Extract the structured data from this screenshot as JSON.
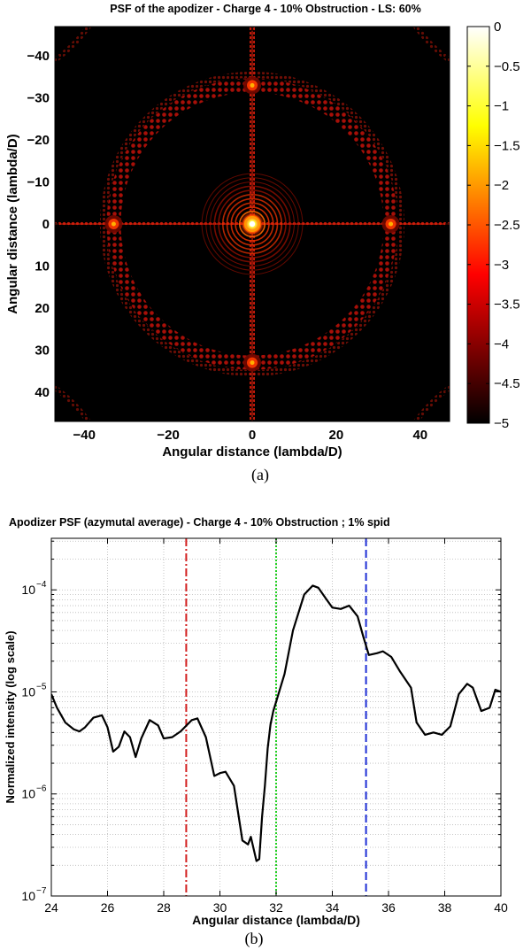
{
  "chart_data": [
    {
      "type": "heatmap",
      "panel_label": "(a)",
      "title": "PSF of the apodizer - Charge 4 - 10% Obstruction - LS: 60%",
      "xlabel": "Angular distance (lambda/D)",
      "ylabel": "Angular distance (lambda/D)",
      "xlim": [
        -47,
        47
      ],
      "ylim": [
        -47,
        47
      ],
      "x_ticks": [
        -40,
        -20,
        0,
        20,
        40
      ],
      "y_ticks": [
        -40,
        -30,
        -20,
        -10,
        0,
        10,
        20,
        30,
        40
      ],
      "y_reversed": true,
      "colorbar": {
        "range": [
          -5,
          0
        ],
        "ticks": [
          0,
          -0.5,
          -1,
          -1.5,
          -2,
          -2.5,
          -3,
          -3.5,
          -4,
          -4.5,
          -5
        ],
        "colormap": "hot"
      },
      "features": {
        "central_rings_radius_max": 12,
        "spider_cross": true,
        "control_ring_radius": 33,
        "spot_positions": [
          [
            0,
            -33
          ],
          [
            0,
            33
          ],
          [
            -33,
            0
          ],
          [
            33,
            0
          ]
        ]
      }
    },
    {
      "type": "line",
      "panel_label": "(b)",
      "title": "Apodizer PSF (azymutal average) - Charge 4 - 10% Obstruction ; 1% spid",
      "xlabel": "Angular distance (lambda/D)",
      "ylabel": "Normalized intensity (log scale)",
      "xlim": [
        24,
        40
      ],
      "ylim": [
        1e-07,
        0.00032
      ],
      "yscale": "log",
      "grid": true,
      "x_ticks": [
        24,
        26,
        28,
        30,
        32,
        34,
        36,
        38,
        40
      ],
      "y_ticks": [
        {
          "value": 1e-07,
          "label": "10",
          "exp": "-7"
        },
        {
          "value": 1e-06,
          "label": "10",
          "exp": "-6"
        },
        {
          "value": 1e-05,
          "label": "10",
          "exp": "-5"
        },
        {
          "value": 0.0001,
          "label": "10",
          "exp": "-4"
        }
      ],
      "series": [
        {
          "name": "azimuthal average",
          "color": "#000000",
          "x": [
            24,
            24.2,
            24.5,
            24.8,
            25,
            25.2,
            25.5,
            25.8,
            26,
            26.2,
            26.4,
            26.6,
            26.8,
            27,
            27.2,
            27.5,
            27.8,
            28.0,
            28.3,
            28.6,
            29.0,
            29.2,
            29.5,
            29.8,
            30.0,
            30.2,
            30.5,
            30.8,
            31.0,
            31.1,
            31.3,
            31.4,
            31.5,
            31.6,
            31.7,
            31.8,
            31.9,
            32.0,
            32.3,
            32.6,
            33.0,
            33.3,
            33.5,
            33.8,
            34.0,
            34.3,
            34.6,
            34.9,
            35.1,
            35.3,
            35.6,
            35.8,
            36.1,
            36.4,
            36.8,
            37.0,
            37.3,
            37.6,
            37.9,
            38.2,
            38.5,
            38.8,
            39.0,
            39.3,
            39.6,
            39.8,
            40.0
          ],
          "y": [
            9.5e-06,
            7e-06,
            5e-06,
            4.3e-06,
            4.1e-06,
            4.5e-06,
            5.6e-06,
            5.9e-06,
            4.5e-06,
            2.6e-06,
            2.9e-06,
            4.1e-06,
            3.6e-06,
            2.3e-06,
            3.5e-06,
            5.3e-06,
            4.7e-06,
            3.5e-06,
            3.6e-06,
            4.1e-06,
            5.3e-06,
            5.5e-06,
            3.6e-06,
            1.5e-06,
            1.6e-06,
            1.65e-06,
            1.2e-06,
            3.5e-07,
            3.2e-07,
            3.8e-07,
            2.2e-07,
            2.3e-07,
            6e-07,
            1.2e-06,
            2.8e-06,
            4.8e-06,
            6.5e-06,
            8e-06,
            1.5e-05,
            4e-05,
            9e-05,
            0.00011,
            0.000105,
            8e-05,
            6.7e-05,
            6.5e-05,
            7e-05,
            5.5e-05,
            3.5e-05,
            2.3e-05,
            2.4e-05,
            2.5e-05,
            2.2e-05,
            1.6e-05,
            1.1e-05,
            5e-06,
            3.8e-06,
            4e-06,
            3.8e-06,
            4.6e-06,
            9.5e-06,
            1.2e-05,
            1.1e-05,
            6.5e-06,
            7e-06,
            1.05e-05,
            1e-05
          ]
        }
      ],
      "vlines": [
        {
          "x": 28.8,
          "color": "#d31f1f",
          "style": "dashdot"
        },
        {
          "x": 32.0,
          "color": "#22d022",
          "style": "dotted"
        },
        {
          "x": 35.2,
          "color": "#1f2fd6",
          "style": "dashed"
        }
      ]
    }
  ]
}
